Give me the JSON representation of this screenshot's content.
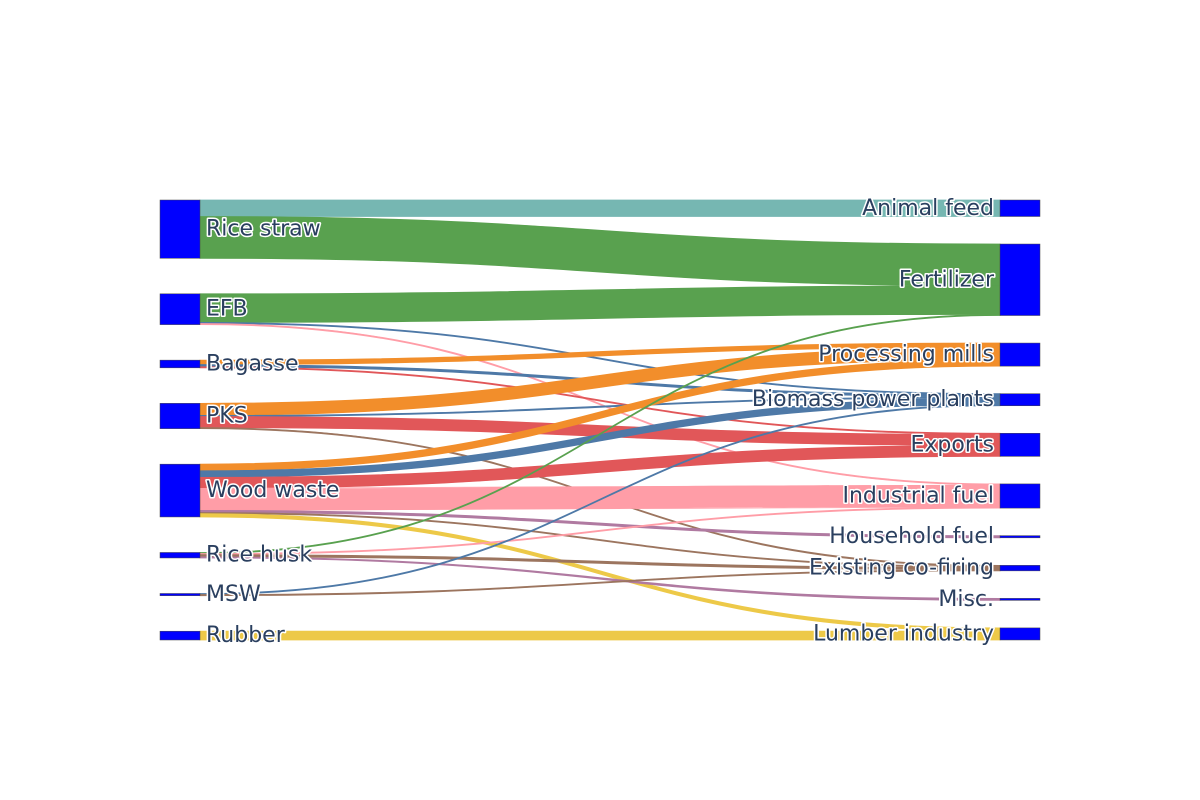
{
  "chart_data": {
    "type": "sankey",
    "title": "",
    "node_color": "#0000ff",
    "sources": [
      "Rice straw",
      "EFB",
      "Bagasse",
      "PKS",
      "Wood waste",
      "Rice husk",
      "MSW",
      "Rubber"
    ],
    "targets": [
      "Animal feed",
      "Fertilizer",
      "Processing mills",
      "Biomass power plants",
      "Exports",
      "Industrial fuel",
      "Household fuel",
      "Existing co-firing",
      "Misc.",
      "Lumber industry"
    ],
    "target_labels": [
      "Animal feed",
      "Fertilizer",
      "Processing mills",
      "Biomass power plants",
      "Exports",
      "Industrial fuel",
      "Household fuel",
      "Existing co-firing",
      "Misc.",
      "Lumber industry"
    ],
    "links": [
      {
        "source": "Rice straw",
        "target": "Animal feed",
        "value": 15,
        "color": "#76b7b2"
      },
      {
        "source": "Rice straw",
        "target": "Fertilizer",
        "value": 38,
        "color": "#59a14f"
      },
      {
        "source": "EFB",
        "target": "Fertilizer",
        "value": 26,
        "color": "#59a14f"
      },
      {
        "source": "EFB",
        "target": "Biomass power plants",
        "value": 1,
        "color": "#4e79a7"
      },
      {
        "source": "EFB",
        "target": "Industrial fuel",
        "value": 1,
        "color": "#ff9da7"
      },
      {
        "source": "Bagasse",
        "target": "Processing mills",
        "value": 4,
        "color": "#f28e2b"
      },
      {
        "source": "Bagasse",
        "target": "Biomass power plants",
        "value": 2,
        "color": "#4e79a7"
      },
      {
        "source": "Bagasse",
        "target": "Exports",
        "value": 1,
        "color": "#e15759"
      },
      {
        "source": "PKS",
        "target": "Processing mills",
        "value": 11,
        "color": "#f28e2b"
      },
      {
        "source": "PKS",
        "target": "Biomass power plants",
        "value": 1,
        "color": "#4e79a7"
      },
      {
        "source": "PKS",
        "target": "Exports",
        "value": 10,
        "color": "#e15759"
      },
      {
        "source": "PKS",
        "target": "Existing co-firing",
        "value": 1,
        "color": "#9c755f"
      },
      {
        "source": "Wood waste",
        "target": "Processing mills",
        "value": 6,
        "color": "#f28e2b"
      },
      {
        "source": "Wood waste",
        "target": "Biomass power plants",
        "value": 6,
        "color": "#4e79a7"
      },
      {
        "source": "Wood waste",
        "target": "Exports",
        "value": 10,
        "color": "#e15759"
      },
      {
        "source": "Wood waste",
        "target": "Industrial fuel",
        "value": 20,
        "color": "#ff9da7"
      },
      {
        "source": "Wood waste",
        "target": "Household fuel",
        "value": 2,
        "color": "#b07aa1"
      },
      {
        "source": "Wood waste",
        "target": "Existing co-firing",
        "value": 1,
        "color": "#9c755f"
      },
      {
        "source": "Wood waste",
        "target": "Lumber industry",
        "value": 3,
        "color": "#edc948"
      },
      {
        "source": "Rice husk",
        "target": "Fertilizer",
        "value": 1,
        "color": "#59a14f"
      },
      {
        "source": "Rice husk",
        "target": "Industrial fuel",
        "value": 1,
        "color": "#ff9da7"
      },
      {
        "source": "Rice husk",
        "target": "Existing co-firing",
        "value": 2,
        "color": "#9c755f"
      },
      {
        "source": "Rice husk",
        "target": "Misc.",
        "value": 1,
        "color": "#b07aa1"
      },
      {
        "source": "MSW",
        "target": "Biomass power plants",
        "value": 1,
        "color": "#4e79a7"
      },
      {
        "source": "MSW",
        "target": "Existing co-firing",
        "value": 1,
        "color": "#9c755f"
      },
      {
        "source": "Rubber",
        "target": "Lumber industry",
        "value": 8,
        "color": "#edc948"
      }
    ]
  }
}
